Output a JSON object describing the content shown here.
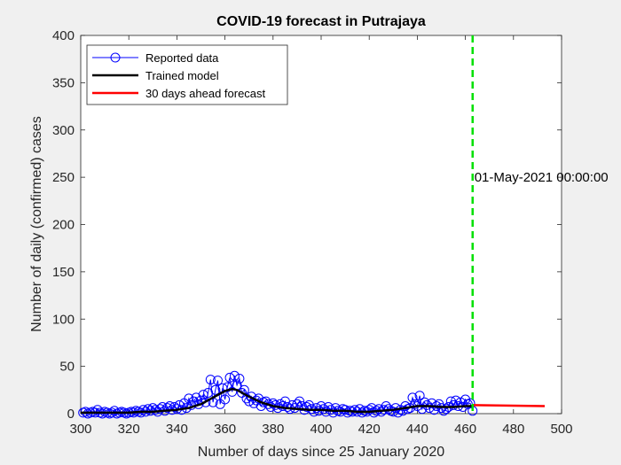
{
  "chart_data": {
    "type": "line",
    "title": "COVID-19 forecast in Putrajaya",
    "xlabel": "Number of days since 25 January 2020",
    "ylabel": "Number of daily (confirmed) cases",
    "xlim": [
      300,
      500
    ],
    "ylim": [
      0,
      400
    ],
    "xticks": [
      "300",
      "320",
      "340",
      "360",
      "380",
      "400",
      "420",
      "440",
      "460",
      "480",
      "500"
    ],
    "yticks": [
      "0",
      "50",
      "100",
      "150",
      "200",
      "250",
      "300",
      "350",
      "400"
    ],
    "grid": false,
    "legend_position": "top-left",
    "legend": [
      "Reported data",
      "Trained model",
      "30 days ahead forecast"
    ],
    "annotation": {
      "text": "01-May-2021 00:00:00",
      "x": 463,
      "y": 250
    },
    "vline": {
      "x": 463,
      "color": "#00e000"
    },
    "colors": {
      "reported": "#0000ff",
      "trained": "#000000",
      "forecast": "#ff0000",
      "vline": "#00e000"
    },
    "series": [
      {
        "name": "Reported data",
        "x": [
          301,
          302,
          303,
          304,
          305,
          306,
          307,
          308,
          309,
          310,
          311,
          312,
          313,
          314,
          315,
          316,
          317,
          318,
          319,
          320,
          321,
          322,
          323,
          324,
          325,
          326,
          327,
          328,
          329,
          330,
          331,
          332,
          333,
          334,
          335,
          336,
          337,
          338,
          339,
          340,
          341,
          342,
          343,
          344,
          345,
          346,
          347,
          348,
          349,
          350,
          351,
          352,
          353,
          354,
          355,
          356,
          357,
          358,
          359,
          360,
          361,
          362,
          363,
          364,
          365,
          366,
          367,
          368,
          369,
          370,
          371,
          372,
          373,
          374,
          375,
          376,
          377,
          378,
          379,
          380,
          381,
          382,
          383,
          384,
          385,
          386,
          387,
          388,
          389,
          390,
          391,
          392,
          393,
          394,
          395,
          396,
          397,
          398,
          399,
          400,
          401,
          402,
          403,
          404,
          405,
          406,
          407,
          408,
          409,
          410,
          411,
          412,
          413,
          414,
          415,
          416,
          417,
          418,
          419,
          420,
          421,
          422,
          423,
          424,
          425,
          426,
          427,
          428,
          429,
          430,
          431,
          432,
          433,
          434,
          435,
          436,
          437,
          438,
          439,
          440,
          441,
          442,
          443,
          444,
          445,
          446,
          447,
          448,
          449,
          450,
          451,
          452,
          453,
          454,
          455,
          456,
          457,
          458,
          459,
          460,
          461,
          462,
          463
        ],
        "y": [
          1,
          2,
          0,
          1,
          2,
          1,
          4,
          1,
          0,
          2,
          1,
          0,
          1,
          3,
          0,
          1,
          2,
          1,
          0,
          1,
          2,
          1,
          3,
          2,
          1,
          4,
          2,
          5,
          3,
          6,
          4,
          2,
          5,
          7,
          3,
          6,
          8,
          4,
          7,
          5,
          9,
          4,
          11,
          6,
          16,
          9,
          13,
          17,
          10,
          14,
          20,
          12,
          22,
          36,
          12,
          25,
          35,
          10,
          27,
          15,
          28,
          38,
          23,
          40,
          30,
          37,
          22,
          25,
          16,
          13,
          18,
          11,
          14,
          16,
          8,
          12,
          13,
          10,
          7,
          11,
          9,
          6,
          10,
          8,
          13,
          7,
          5,
          9,
          6,
          10,
          13,
          8,
          4,
          7,
          9,
          5,
          2,
          6,
          3,
          8,
          5,
          2,
          7,
          4,
          1,
          6,
          3,
          2,
          5,
          4,
          1,
          3,
          2,
          4,
          2,
          5,
          1,
          3,
          2,
          4,
          6,
          1,
          3,
          5,
          2,
          4,
          8,
          5,
          3,
          2,
          6,
          1,
          4,
          3,
          8,
          5,
          6,
          17,
          10,
          8,
          19,
          5,
          12,
          9,
          6,
          11,
          4,
          8,
          10,
          6,
          3,
          5,
          7,
          13,
          9,
          14,
          8,
          12,
          7,
          15,
          10,
          11,
          3
        ]
      },
      {
        "name": "Trained model",
        "x": [
          300,
          305,
          310,
          315,
          320,
          325,
          330,
          335,
          340,
          345,
          350,
          355,
          360,
          363,
          365,
          370,
          375,
          380,
          385,
          390,
          395,
          400,
          405,
          410,
          415,
          420,
          425,
          430,
          435,
          440,
          445,
          450,
          455,
          460,
          463
        ],
        "y": [
          1,
          1,
          1,
          1,
          1,
          2,
          2,
          3,
          4,
          6,
          10,
          17,
          24,
          26,
          25,
          18,
          12,
          8,
          6,
          5,
          4,
          4,
          3,
          3,
          2,
          2,
          3,
          4,
          6,
          8,
          8,
          7,
          7,
          8,
          8
        ]
      },
      {
        "name": "30 days ahead forecast",
        "x": [
          463,
          493
        ],
        "y": [
          9,
          8
        ]
      }
    ]
  }
}
